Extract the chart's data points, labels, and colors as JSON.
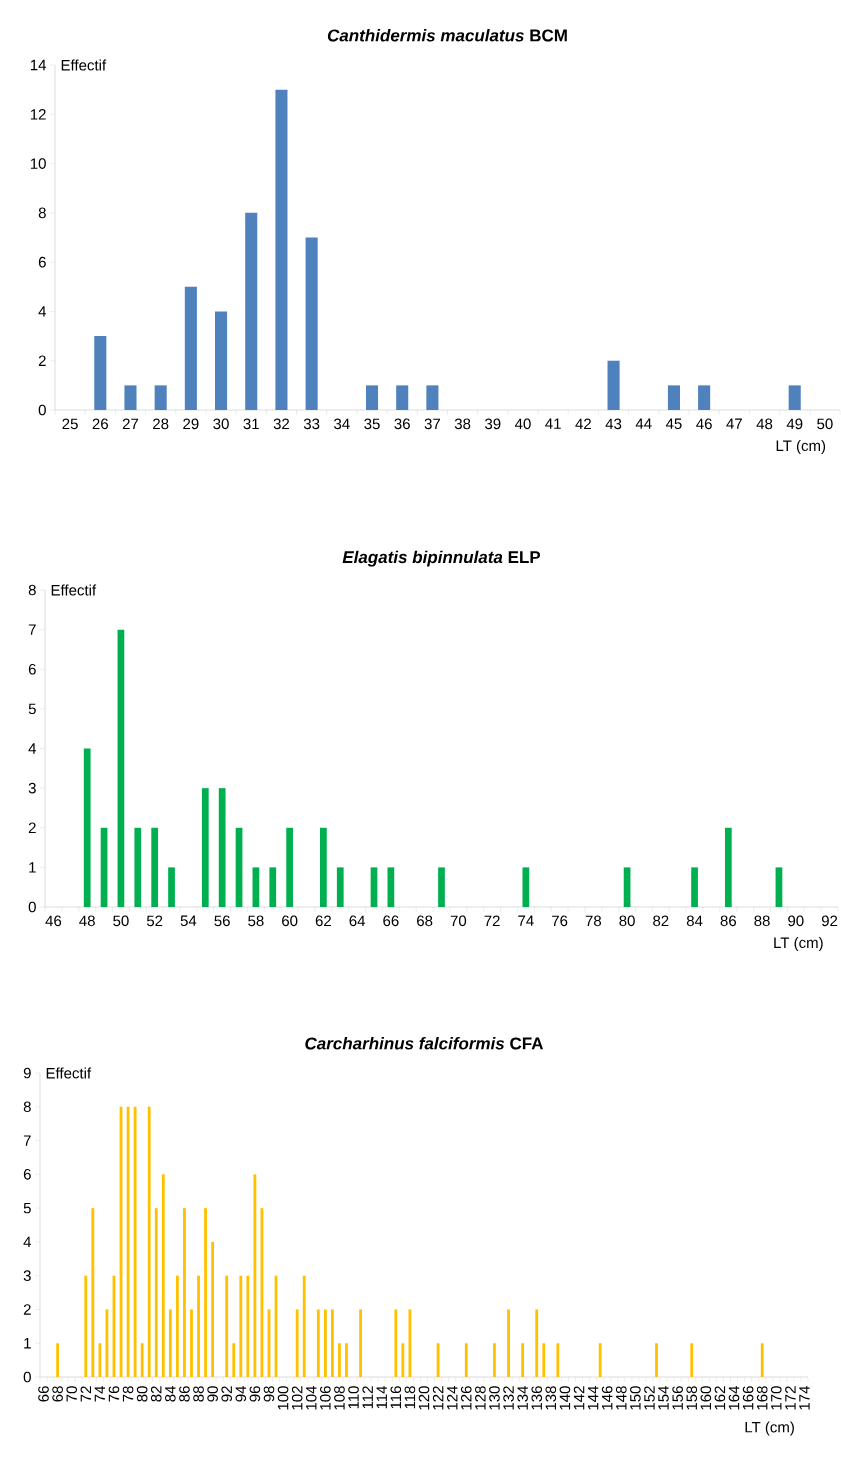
{
  "chart_data": [
    {
      "type": "bar",
      "title": "*Canthidermis maculatus* BCM",
      "xlabel": "LT (cm)",
      "ylabel": "Effectif",
      "color": "#4f81bd",
      "categories": [
        "25",
        "26",
        "27",
        "28",
        "29",
        "30",
        "31",
        "32",
        "33",
        "34",
        "35",
        "36",
        "37",
        "38",
        "39",
        "40",
        "41",
        "42",
        "43",
        "44",
        "45",
        "46",
        "47",
        "48",
        "49",
        "50"
      ],
      "values": [
        0,
        3,
        1,
        1,
        5,
        4,
        8,
        13,
        7,
        0,
        1,
        1,
        1,
        0,
        0,
        0,
        0,
        0,
        2,
        0,
        1,
        1,
        0,
        0,
        1,
        0
      ],
      "ylim": [
        0,
        14
      ],
      "yticks": [
        0,
        2,
        4,
        6,
        8,
        10,
        12,
        14
      ]
    },
    {
      "type": "bar",
      "title": "*Elagatis bipinnulata* ELP",
      "xlabel": "LT (cm)",
      "ylabel": "Effectif",
      "color": "#00b050",
      "categories": [
        "46",
        null,
        "48",
        null,
        "50",
        null,
        "52",
        null,
        "54",
        null,
        "56",
        null,
        "58",
        null,
        "60",
        null,
        "62",
        null,
        "64",
        null,
        "66",
        null,
        "68",
        null,
        "70",
        null,
        "72",
        null,
        "74",
        null,
        "76",
        null,
        "78",
        null,
        "80",
        null,
        "82",
        null,
        "84",
        null,
        "86",
        null,
        "88",
        null,
        "90",
        null,
        "92"
      ],
      "values": [
        0,
        0,
        4,
        2,
        7,
        2,
        2,
        1,
        0,
        3,
        3,
        2,
        1,
        1,
        2,
        0,
        2,
        1,
        0,
        1,
        1,
        0,
        0,
        1,
        0,
        0,
        0,
        0,
        1,
        0,
        0,
        0,
        0,
        0,
        1,
        0,
        0,
        0,
        1,
        0,
        2,
        0,
        0,
        1,
        0,
        0,
        0
      ],
      "ylim": [
        0,
        8
      ],
      "yticks": [
        0,
        1,
        2,
        3,
        4,
        5,
        6,
        7,
        8
      ]
    },
    {
      "type": "bar",
      "title": "*Carcharhinus falciformis* CFA",
      "xlabel": "LT (cm)",
      "ylabel": "Effectif",
      "color": "#ffc000",
      "categories": [
        "66",
        null,
        "68",
        null,
        "70",
        null,
        "72",
        null,
        "74",
        null,
        "76",
        null,
        "78",
        null,
        "80",
        null,
        "82",
        null,
        "84",
        null,
        "86",
        null,
        "88",
        null,
        "90",
        null,
        "92",
        null,
        "94",
        null,
        "96",
        null,
        "98",
        null,
        "100",
        null,
        "102",
        null,
        "104",
        null,
        "106",
        null,
        "108",
        null,
        "110",
        null,
        "112",
        null,
        "114",
        null,
        "116",
        null,
        "118",
        null,
        "120",
        null,
        "122",
        null,
        "124",
        null,
        "126",
        null,
        "128",
        null,
        "130",
        null,
        "132",
        null,
        "134",
        null,
        "136",
        null,
        "138",
        null,
        "140",
        null,
        "142",
        null,
        "144",
        null,
        "146",
        null,
        "148",
        null,
        "150",
        null,
        "152",
        null,
        "154",
        null,
        "156",
        null,
        "158",
        null,
        "160",
        null,
        "162",
        null,
        "164",
        null,
        "166",
        null,
        "168",
        null,
        "170",
        null,
        "172",
        null,
        "174"
      ],
      "values": [
        0,
        0,
        1,
        0,
        0,
        0,
        3,
        5,
        1,
        2,
        3,
        8,
        8,
        8,
        1,
        8,
        5,
        6,
        2,
        3,
        5,
        2,
        3,
        5,
        4,
        0,
        3,
        1,
        3,
        3,
        6,
        5,
        2,
        3,
        0,
        0,
        2,
        3,
        0,
        2,
        2,
        2,
        1,
        1,
        0,
        2,
        0,
        0,
        0,
        0,
        2,
        1,
        2,
        0,
        0,
        0,
        1,
        0,
        0,
        0,
        1,
        0,
        0,
        0,
        1,
        0,
        2,
        0,
        1,
        0,
        2,
        1,
        0,
        1,
        0,
        0,
        0,
        0,
        0,
        1,
        0,
        0,
        0,
        0,
        0,
        0,
        0,
        1,
        0,
        0,
        0,
        0,
        1,
        0,
        0,
        0,
        0,
        0,
        0,
        0,
        0,
        0,
        1,
        0,
        0,
        0,
        0,
        0,
        0
      ],
      "ylim": [
        0,
        9
      ],
      "yticks": [
        0,
        1,
        2,
        3,
        4,
        5,
        6,
        7,
        8,
        9
      ]
    }
  ]
}
